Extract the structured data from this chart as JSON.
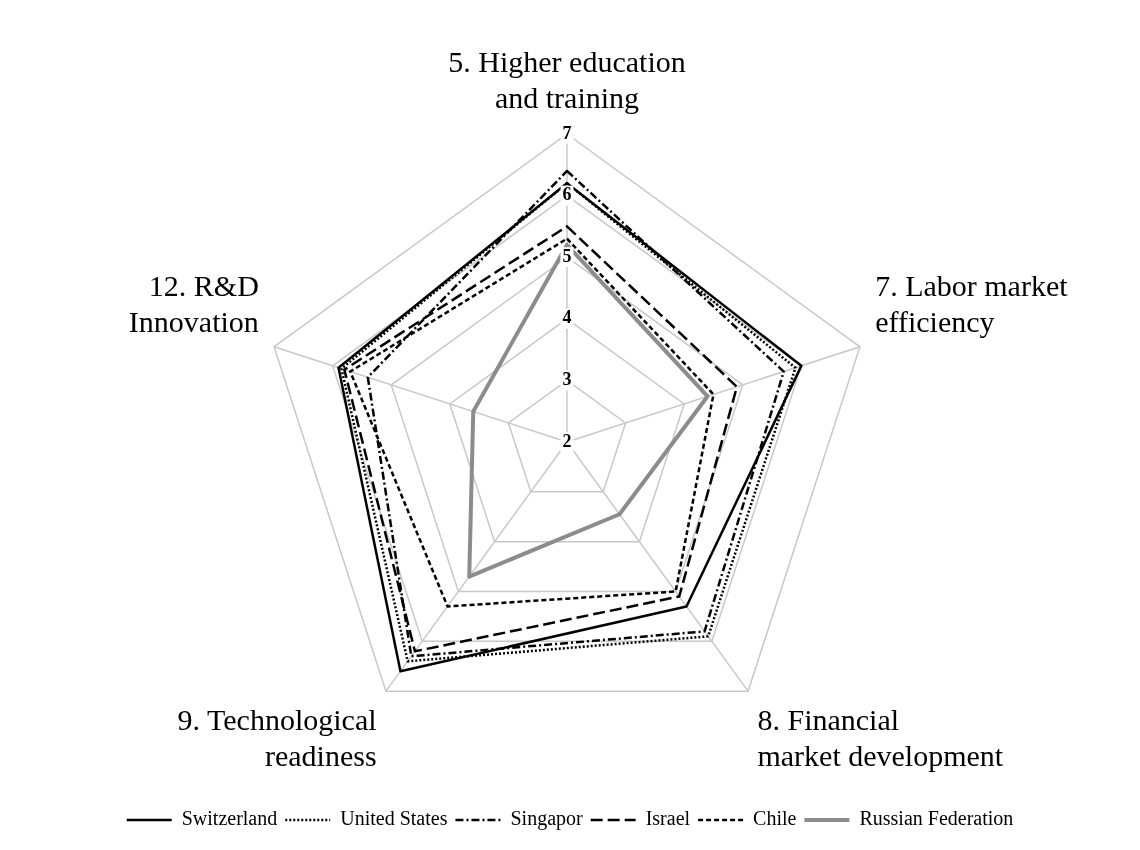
{
  "chart_data": {
    "type": "radar",
    "categories": [
      "5. Higher education and training",
      "7. Labor market efficiency",
      "8. Financial market development",
      "9. Technological readiness",
      "12. R&D Innovation"
    ],
    "ylim": [
      2,
      7
    ],
    "yticks": [
      2,
      3,
      4,
      5,
      6,
      7
    ],
    "grid": true,
    "legend": "bottom",
    "marker": "none",
    "series": [
      {
        "name": "Switzerland",
        "color": "#000000",
        "line_style": "solid",
        "values": [
          6.2,
          6.0,
          5.3,
          6.6,
          5.9
        ]
      },
      {
        "name": "United States",
        "color": "#000000",
        "line_style": "dotted",
        "values": [
          6.2,
          5.9,
          5.9,
          6.4,
          5.85
        ]
      },
      {
        "name": "Singapor",
        "color": "#000000",
        "line_style": "dashdot",
        "values": [
          6.4,
          5.7,
          5.8,
          6.3,
          5.4
        ]
      },
      {
        "name": "Israel",
        "color": "#000000",
        "line_style": "longdash",
        "values": [
          5.5,
          4.9,
          5.1,
          6.2,
          5.8
        ]
      },
      {
        "name": "Chile",
        "color": "#000000",
        "line_style": "dashed",
        "values": [
          5.3,
          4.5,
          5.0,
          5.3,
          5.7
        ]
      },
      {
        "name": "Russian Federation",
        "color": "#8c8c8c",
        "line_style": "solid",
        "values": [
          5.2,
          4.4,
          3.45,
          4.7,
          3.6
        ]
      }
    ]
  }
}
